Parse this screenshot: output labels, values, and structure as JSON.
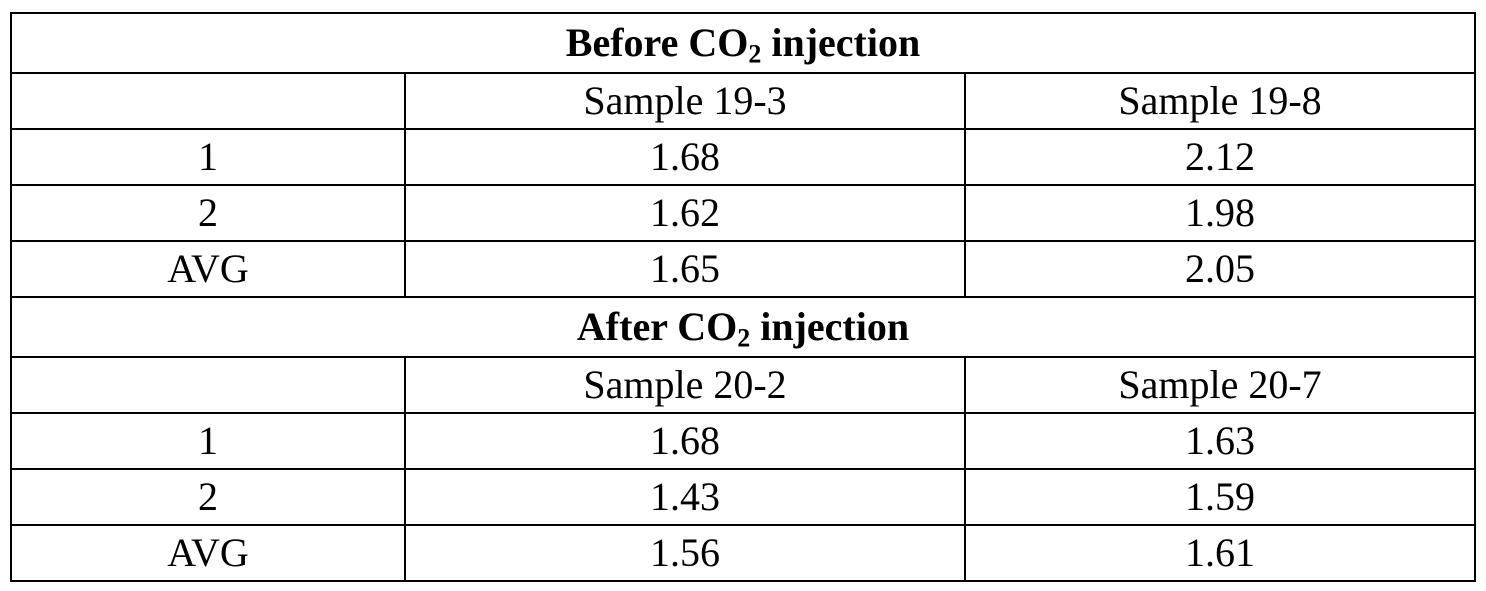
{
  "sections": [
    {
      "title_prefix": "Before CO",
      "title_sub": "2",
      "title_suffix": " injection",
      "samples": [
        "Sample 19-3",
        "Sample 19-8"
      ],
      "rows": [
        {
          "label": "1",
          "values": [
            "1.68",
            "2.12"
          ]
        },
        {
          "label": "2",
          "values": [
            "1.62",
            "1.98"
          ]
        },
        {
          "label": "AVG",
          "values": [
            "1.65",
            "2.05"
          ]
        }
      ]
    },
    {
      "title_prefix": "After CO",
      "title_sub": "2",
      "title_suffix": " injection",
      "samples": [
        "Sample 20-2",
        "Sample 20-7"
      ],
      "rows": [
        {
          "label": "1",
          "values": [
            "1.68",
            "1.63"
          ]
        },
        {
          "label": "2",
          "values": [
            "1.43",
            "1.59"
          ]
        },
        {
          "label": "AVG",
          "values": [
            "1.56",
            "1.61"
          ]
        }
      ]
    }
  ]
}
